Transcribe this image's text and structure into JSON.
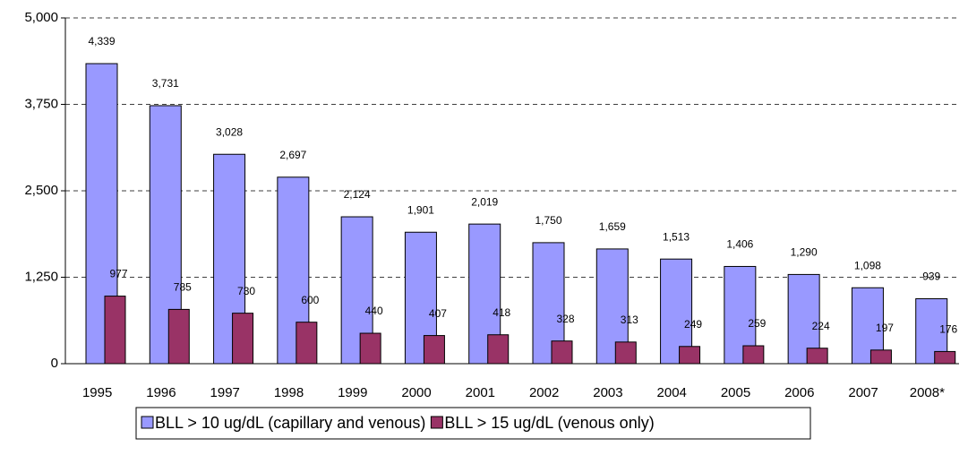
{
  "chart_data": {
    "type": "bar",
    "categories": [
      "1995",
      "1996",
      "1997",
      "1998",
      "1999",
      "2000",
      "2001",
      "2002",
      "2003",
      "2004",
      "2005",
      "2006",
      "2007",
      "2008*"
    ],
    "series": [
      {
        "name": "BLL > 10 ug/dL (capillary and venous)",
        "color": "#9999ff",
        "values": [
          4339,
          3731,
          3028,
          2697,
          2124,
          1901,
          2019,
          1750,
          1659,
          1513,
          1406,
          1290,
          1098,
          939
        ],
        "value_labels": [
          "4,339",
          "3,731",
          "3,028",
          "2,697",
          "2,124",
          "1,901",
          "2,019",
          "1,750",
          "1,659",
          "1,513",
          "1,406",
          "1,290",
          "1,098",
          "939"
        ]
      },
      {
        "name": "BLL > 15 ug/dL (venous only)",
        "color": "#993366",
        "values": [
          977,
          785,
          730,
          600,
          440,
          407,
          418,
          328,
          313,
          249,
          259,
          224,
          197,
          176
        ]
      }
    ],
    "ylim": [
      0,
      5000
    ],
    "yticks": [
      0,
      {
        "value": 1250,
        "label": "1,250"
      },
      {
        "value": 2500,
        "label": "2,500"
      },
      {
        "value": 3750,
        "label": "3,750"
      },
      {
        "value": 5000,
        "label": "5,000"
      }
    ],
    "grid": true
  }
}
